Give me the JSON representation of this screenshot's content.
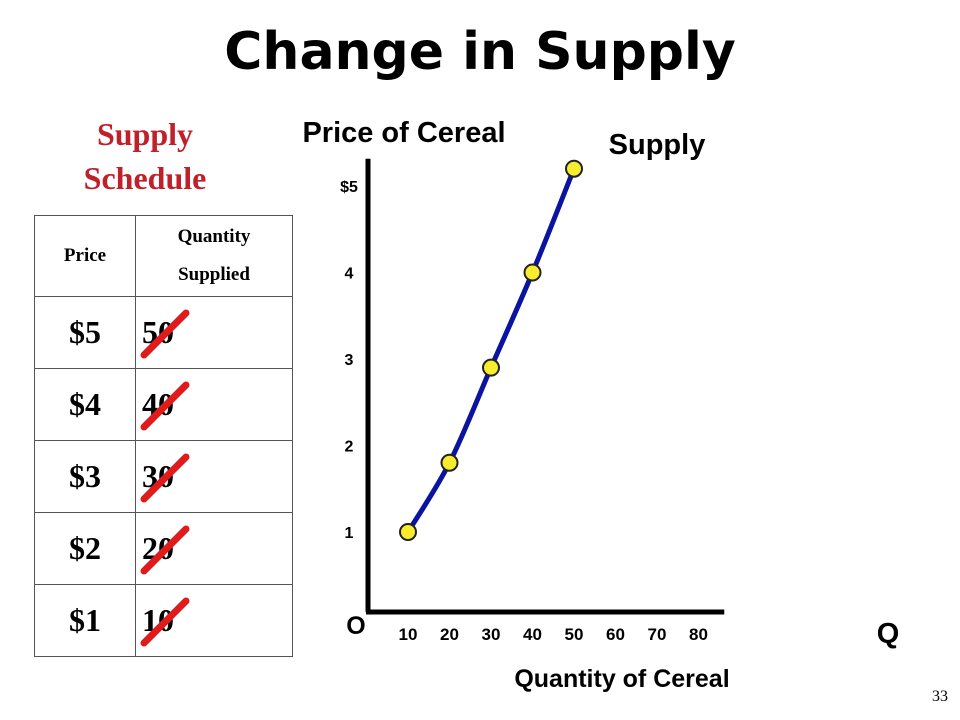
{
  "slide": {
    "title": "Change in Supply",
    "page_number": "33"
  },
  "schedule": {
    "heading_line1": "Supply",
    "heading_line2": "Schedule",
    "col_price": "Price",
    "col_qty_line1": "Quantity",
    "col_qty_line2": "Supplied",
    "rows": [
      {
        "price": "$5",
        "qty": "50"
      },
      {
        "price": "$4",
        "qty": "40"
      },
      {
        "price": "$3",
        "qty": "30"
      },
      {
        "price": "$2",
        "qty": "20"
      },
      {
        "price": "$1",
        "qty": "10"
      }
    ],
    "check_color": "#e01b1b"
  },
  "chart_data": {
    "type": "line",
    "title": "Price of Cereal",
    "xlabel": "Quantity of Cereal",
    "ylabel": "Price of Cereal",
    "x_axis_symbol": "Q",
    "origin_label": "O",
    "xlim": [
      0,
      85
    ],
    "ylim": [
      0,
      5.2
    ],
    "x_ticks": [
      "10",
      "20",
      "30",
      "40",
      "50",
      "60",
      "70",
      "80"
    ],
    "y_ticks": [
      "$5",
      "4",
      "3",
      "2",
      "1"
    ],
    "series": [
      {
        "name": "Supply",
        "x": [
          10,
          20,
          30,
          40,
          50
        ],
        "y": [
          1,
          1.8,
          2.9,
          4,
          5.2
        ]
      }
    ],
    "curve_color": "#0a14a0",
    "point_color": "#f7ec2e",
    "grid": false
  }
}
